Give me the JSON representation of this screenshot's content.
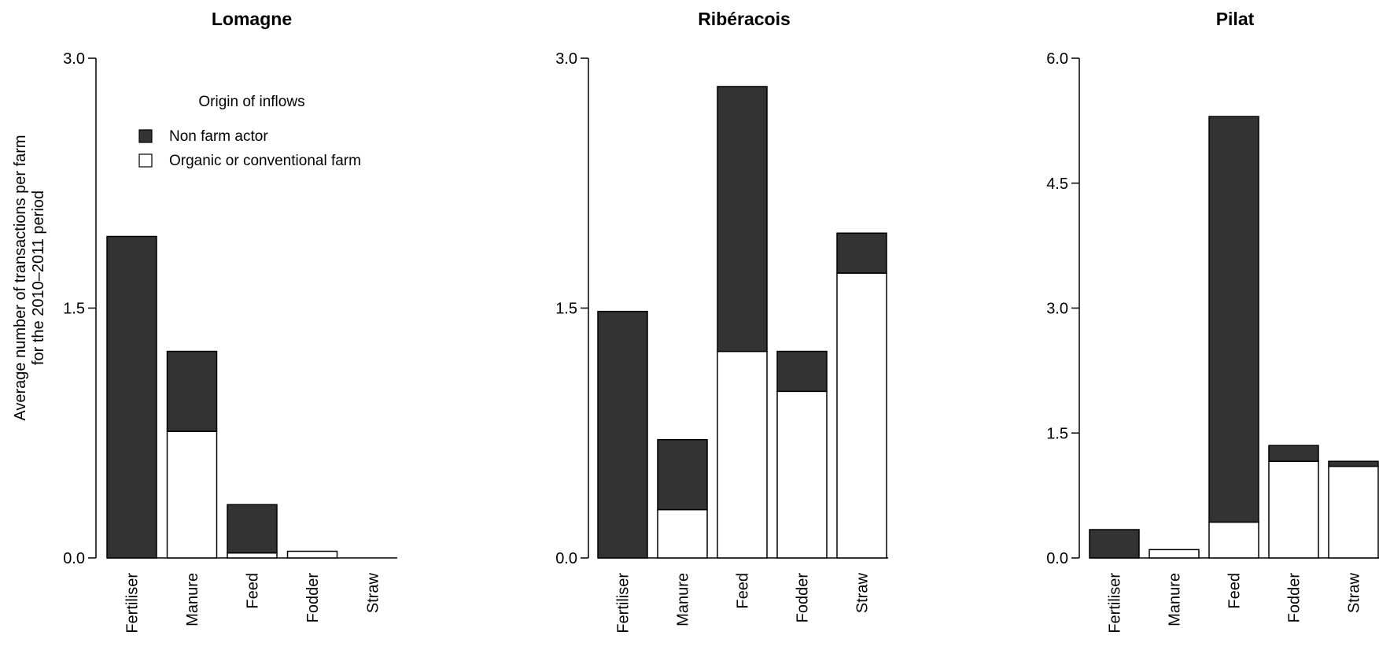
{
  "chart_data": {
    "type": "bar",
    "stacked": true,
    "ylabel_line1": "Average number of transactions per farm",
    "ylabel_line2": "for the 2010–2011 period",
    "legend": {
      "title": "Origin of inflows",
      "entries": [
        {
          "label": "Non farm actor",
          "color": "#333333"
        },
        {
          "label": "Organic or conventional farm",
          "color": "#ffffff"
        }
      ]
    },
    "colors": {
      "non_farm": "#333333",
      "farm": "#ffffff",
      "stroke": "#000000"
    },
    "panels": [
      {
        "title": "Lomagne",
        "ylim": [
          0,
          3.0
        ],
        "ticks": [
          "0.0",
          "1.5",
          "3.0"
        ],
        "tick_values": [
          0,
          1.5,
          3.0
        ],
        "categories": [
          "Fertiliser",
          "Manure",
          "Feed",
          "Fodder",
          "Straw"
        ],
        "series": [
          {
            "name": "Organic or conventional farm",
            "values": [
              0,
              0.76,
              0.03,
              0.04,
              0
            ]
          },
          {
            "name": "Non farm actor",
            "values": [
              1.93,
              0.48,
              0.29,
              0,
              0
            ]
          }
        ]
      },
      {
        "title": "Ribéracois",
        "ylim": [
          0,
          3.0
        ],
        "ticks": [
          "0.0",
          "1.5",
          "3.0"
        ],
        "tick_values": [
          0,
          1.5,
          3.0
        ],
        "categories": [
          "Fertiliser",
          "Manure",
          "Feed",
          "Fodder",
          "Straw"
        ],
        "series": [
          {
            "name": "Organic or conventional farm",
            "values": [
              0,
              0.29,
              1.24,
              1.0,
              1.71
            ]
          },
          {
            "name": "Non farm actor",
            "values": [
              1.48,
              0.42,
              1.59,
              0.24,
              0.24
            ]
          }
        ]
      },
      {
        "title": "Pilat",
        "ylim": [
          0,
          6.0
        ],
        "ticks": [
          "0.0",
          "1.5",
          "3.0",
          "4.5",
          "6.0"
        ],
        "tick_values": [
          0,
          1.5,
          3.0,
          4.5,
          6.0
        ],
        "categories": [
          "Fertiliser",
          "Manure",
          "Feed",
          "Fodder",
          "Straw"
        ],
        "series": [
          {
            "name": "Organic or conventional farm",
            "values": [
              0,
              0.1,
              0.43,
              1.16,
              1.1
            ]
          },
          {
            "name": "Non farm actor",
            "values": [
              0.34,
              0,
              4.87,
              0.19,
              0.06
            ]
          }
        ]
      }
    ]
  }
}
